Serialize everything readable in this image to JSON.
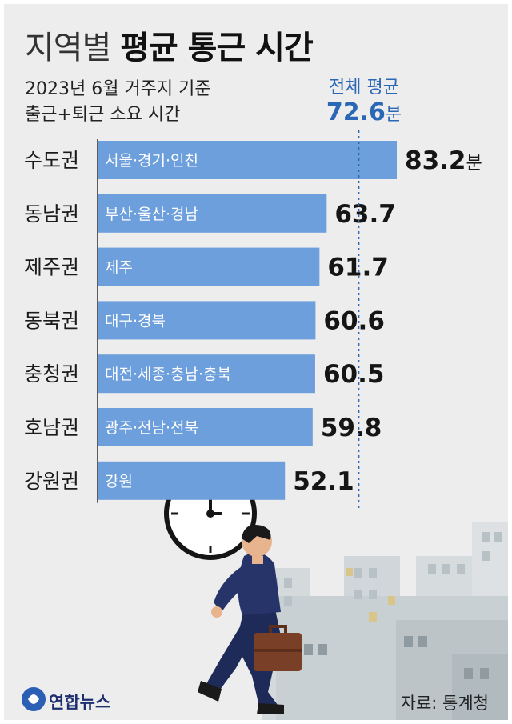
{
  "title": {
    "light": "지역별",
    "bold": "평균 통근 시간"
  },
  "subtitle": {
    "line1": "2023년 6월 거주지 기준",
    "line2": "출근+퇴근 소요 시간"
  },
  "average": {
    "label": "전체 평균",
    "value": "72.6",
    "unit": "분"
  },
  "source": "자료: 통계청",
  "logo_text": "연합뉴스",
  "colors": {
    "bar": "#6c9fdb",
    "avg_line": "#2a67b5",
    "background": "#ededee"
  },
  "chart_data": {
    "type": "bar",
    "orientation": "horizontal",
    "categories": [
      "수도권",
      "동남권",
      "제주권",
      "동북권",
      "충청권",
      "호남권",
      "강원권"
    ],
    "bar_labels": [
      "서울·경기·인천",
      "부산·울산·경남",
      "제주",
      "대구·경북",
      "대전·세종·충남·충북",
      "광주·전남·전북",
      "강원"
    ],
    "values": [
      83.2,
      63.7,
      61.7,
      60.6,
      60.5,
      59.8,
      52.1
    ],
    "value_labels": [
      "83.2",
      "63.7",
      "61.7",
      "60.6",
      "60.5",
      "59.8",
      "52.1"
    ],
    "first_value_unit": "분",
    "reference_line": {
      "value": 72.6
    },
    "xlim": [
      0,
      83.2
    ]
  }
}
